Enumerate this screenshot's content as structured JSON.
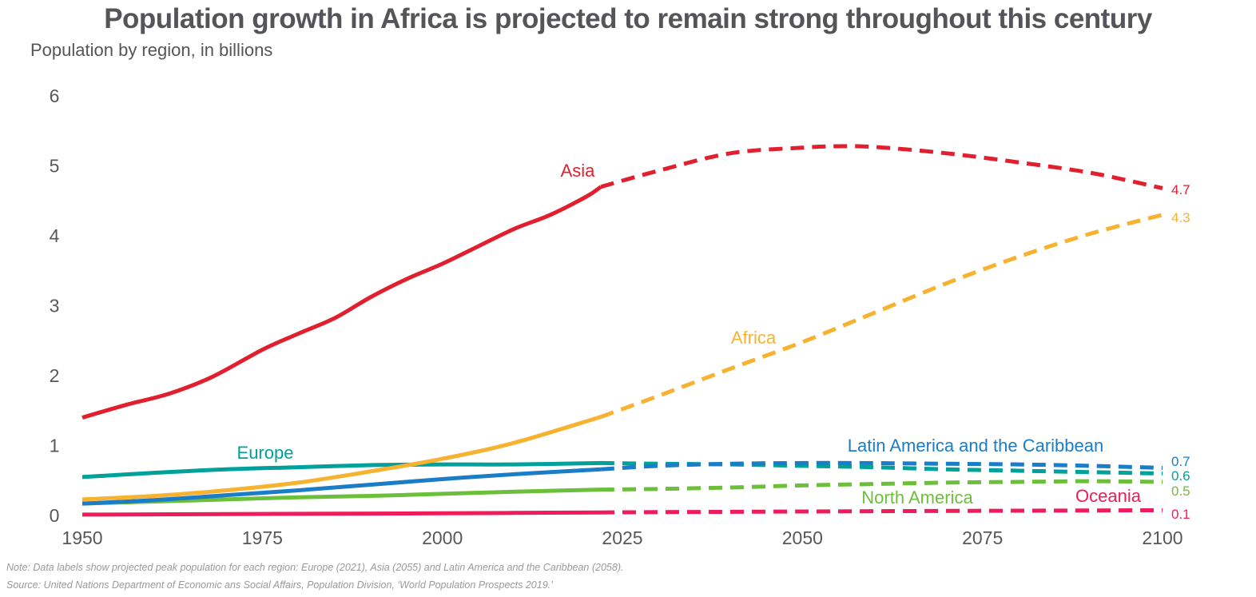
{
  "title": "Population growth in Africa is projected to remain strong throughout this century",
  "subtitle": "Population by region, in billions",
  "note": "Note: Data labels show projected peak population for each region: Europe (2021), Asia (2055) and Latin America and the Caribbean (2058).",
  "source": "Source: United Nations Department of Economic ans Social Affairs, Population Division, ‘World Population Prospects 2019.’",
  "chart_data": {
    "type": "line",
    "title": "Population growth in Africa is projected to remain strong throughout this century",
    "ylabel": "Population by region, in billions",
    "xlim": [
      1950,
      2100
    ],
    "ylim": [
      0,
      6
    ],
    "projection_start": 2022,
    "x_ticks": [
      "1950",
      "1975",
      "2000",
      "2025",
      "2050",
      "2075",
      "2100"
    ],
    "y_ticks": [
      "0",
      "1",
      "2",
      "3",
      "4",
      "5",
      "6"
    ],
    "series": [
      {
        "name": "Asia",
        "color": "#e0202f",
        "end_label": "4.7",
        "points": [
          [
            1950,
            1.4
          ],
          [
            1956,
            1.58
          ],
          [
            1962,
            1.74
          ],
          [
            1968,
            1.98
          ],
          [
            1975,
            2.37
          ],
          [
            1980,
            2.6
          ],
          [
            1985,
            2.82
          ],
          [
            1990,
            3.12
          ],
          [
            1995,
            3.38
          ],
          [
            2000,
            3.6
          ],
          [
            2005,
            3.85
          ],
          [
            2010,
            4.1
          ],
          [
            2015,
            4.3
          ],
          [
            2020,
            4.56
          ],
          [
            2022,
            4.7
          ],
          [
            2030,
            4.93
          ],
          [
            2040,
            5.18
          ],
          [
            2050,
            5.26
          ],
          [
            2055,
            5.28
          ],
          [
            2060,
            5.27
          ],
          [
            2070,
            5.18
          ],
          [
            2080,
            5.05
          ],
          [
            2090,
            4.9
          ],
          [
            2100,
            4.68
          ]
        ]
      },
      {
        "name": "Africa",
        "color": "#f7b230",
        "end_label": "4.3",
        "points": [
          [
            1950,
            0.23
          ],
          [
            1960,
            0.28
          ],
          [
            1970,
            0.36
          ],
          [
            1980,
            0.47
          ],
          [
            1990,
            0.63
          ],
          [
            2000,
            0.81
          ],
          [
            2010,
            1.04
          ],
          [
            2022,
            1.41
          ],
          [
            2030,
            1.71
          ],
          [
            2040,
            2.1
          ],
          [
            2050,
            2.48
          ],
          [
            2060,
            2.9
          ],
          [
            2070,
            3.32
          ],
          [
            2080,
            3.7
          ],
          [
            2090,
            4.03
          ],
          [
            2100,
            4.3
          ]
        ]
      },
      {
        "name": "Europe",
        "color": "#00a19a",
        "end_label": "0.6",
        "points": [
          [
            1950,
            0.55
          ],
          [
            1960,
            0.61
          ],
          [
            1970,
            0.66
          ],
          [
            1980,
            0.69
          ],
          [
            1990,
            0.72
          ],
          [
            2000,
            0.73
          ],
          [
            2010,
            0.73
          ],
          [
            2022,
            0.75
          ],
          [
            2030,
            0.74
          ],
          [
            2040,
            0.73
          ],
          [
            2050,
            0.71
          ],
          [
            2060,
            0.69
          ],
          [
            2070,
            0.66
          ],
          [
            2080,
            0.64
          ],
          [
            2090,
            0.62
          ],
          [
            2100,
            0.6
          ]
        ]
      },
      {
        "name": "Latin America and the Caribbean",
        "color": "#1b7dc8",
        "end_label": "0.7",
        "points": [
          [
            1950,
            0.17
          ],
          [
            1960,
            0.22
          ],
          [
            1970,
            0.29
          ],
          [
            1980,
            0.36
          ],
          [
            1990,
            0.44
          ],
          [
            2000,
            0.52
          ],
          [
            2010,
            0.59
          ],
          [
            2022,
            0.66
          ],
          [
            2030,
            0.71
          ],
          [
            2040,
            0.74
          ],
          [
            2050,
            0.75
          ],
          [
            2058,
            0.75
          ],
          [
            2070,
            0.74
          ],
          [
            2080,
            0.73
          ],
          [
            2090,
            0.71
          ],
          [
            2100,
            0.68
          ]
        ]
      },
      {
        "name": "North America",
        "color": "#6cbf3a",
        "end_label": "0.5",
        "points": [
          [
            1950,
            0.17
          ],
          [
            1960,
            0.2
          ],
          [
            1970,
            0.23
          ],
          [
            1980,
            0.26
          ],
          [
            1990,
            0.28
          ],
          [
            2000,
            0.31
          ],
          [
            2010,
            0.34
          ],
          [
            2022,
            0.37
          ],
          [
            2030,
            0.38
          ],
          [
            2040,
            0.4
          ],
          [
            2050,
            0.43
          ],
          [
            2060,
            0.45
          ],
          [
            2070,
            0.47
          ],
          [
            2080,
            0.48
          ],
          [
            2090,
            0.49
          ],
          [
            2100,
            0.48
          ]
        ]
      },
      {
        "name": "Oceania",
        "color": "#ee1c5a",
        "end_label": "0.1",
        "points": [
          [
            1950,
            0.013
          ],
          [
            1970,
            0.02
          ],
          [
            1990,
            0.027
          ],
          [
            2000,
            0.031
          ],
          [
            2010,
            0.037
          ],
          [
            2022,
            0.043
          ],
          [
            2030,
            0.048
          ],
          [
            2050,
            0.057
          ],
          [
            2070,
            0.065
          ],
          [
            2085,
            0.07
          ],
          [
            2100,
            0.075
          ]
        ]
      }
    ]
  }
}
